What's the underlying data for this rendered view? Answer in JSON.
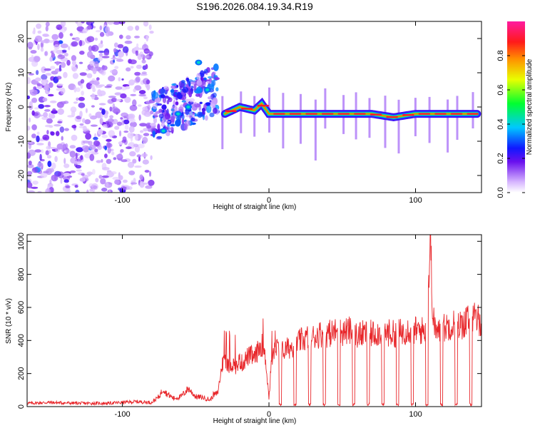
{
  "figure_title": "S196.2026.084.19.34.R19",
  "chart_data": [
    {
      "type": "heatmap",
      "title": "S196.2026.084.19.34.R19",
      "xlabel": "Height of straight line (km)",
      "ylabel": "Frequency (Hz)",
      "xlim": [
        -165,
        145
      ],
      "ylim": [
        -25,
        25
      ],
      "xticks": [
        -100,
        0,
        100
      ],
      "yticks": [
        -20,
        -10,
        0,
        10,
        20
      ],
      "colorbar": {
        "label": "Normalized spectral amplitude",
        "range": [
          0,
          1
        ],
        "ticks": [
          "0.0",
          "0.2",
          "0.4",
          "0.6",
          "0.8"
        ],
        "colormap": "purple-blue-cyan-green-yellow-red-magenta"
      },
      "features": [
        {
          "name": "noise",
          "x_range": [
            -165,
            -80
          ],
          "freq_range": [
            -25,
            25
          ],
          "amplitude": 0.15
        },
        {
          "name": "scattered-signal",
          "x_range": [
            -80,
            -35
          ],
          "freq_range": [
            -10,
            15
          ],
          "amplitude": 0.3
        },
        {
          "name": "peak-track",
          "points": [
            [
              -30,
              -2
            ],
            [
              -20,
              0
            ],
            [
              -10,
              -1
            ],
            [
              -5,
              1
            ],
            [
              0,
              -2
            ],
            [
              10,
              -2
            ],
            [
              30,
              -2
            ],
            [
              50,
              -2
            ],
            [
              70,
              -2
            ],
            [
              85,
              -3
            ],
            [
              100,
              -2
            ],
            [
              115,
              -2
            ],
            [
              130,
              -2
            ],
            [
              142,
              -2
            ]
          ],
          "amplitude": 0.9
        }
      ]
    },
    {
      "type": "line",
      "title": "",
      "xlabel": "Height of straight line (km)",
      "ylabel": "SNR (10 * v/v)",
      "xlim": [
        -165,
        145
      ],
      "ylim": [
        0,
        1040
      ],
      "xticks": [
        -100,
        0,
        100
      ],
      "yticks": [
        0,
        200,
        400,
        600,
        800,
        1000
      ],
      "series": [
        {
          "name": "SNR",
          "color": "#e8262a",
          "x": [
            -165,
            -150,
            -130,
            -110,
            -90,
            -80,
            -75,
            -72,
            -70,
            -65,
            -60,
            -55,
            -50,
            -45,
            -40,
            -38,
            -35,
            -32,
            -30,
            -28,
            -25,
            -22,
            -20,
            -18,
            -15,
            -12,
            -10,
            -8,
            -5,
            -2,
            0,
            2,
            5,
            8,
            10,
            12,
            15,
            18,
            20,
            22,
            25,
            28,
            30,
            35,
            40,
            45,
            50,
            55,
            60,
            65,
            70,
            75,
            80,
            85,
            90,
            95,
            100,
            105,
            108,
            110,
            112,
            115,
            120,
            125,
            130,
            135,
            140,
            145
          ],
          "values": [
            20,
            25,
            20,
            20,
            30,
            25,
            60,
            110,
            80,
            50,
            60,
            110,
            60,
            55,
            40,
            70,
            80,
            250,
            300,
            240,
            260,
            240,
            280,
            260,
            300,
            310,
            290,
            330,
            380,
            270,
            50,
            300,
            350,
            350,
            330,
            350,
            360,
            380,
            390,
            400,
            410,
            430,
            420,
            440,
            440,
            450,
            450,
            460,
            430,
            440,
            440,
            450,
            450,
            440,
            450,
            470,
            460,
            460,
            480,
            1030,
            520,
            440,
            480,
            500,
            490,
            520,
            530,
            520
          ]
        }
      ]
    }
  ]
}
